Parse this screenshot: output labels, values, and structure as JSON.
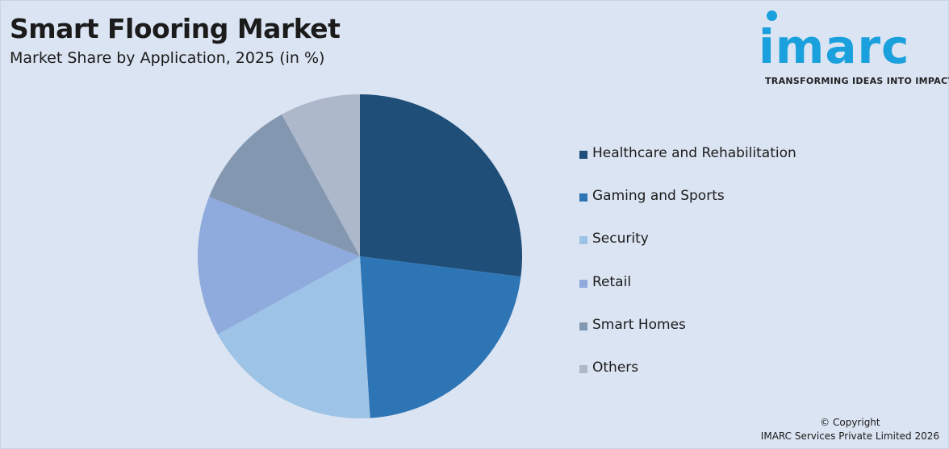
{
  "header": {
    "title": "Smart Flooring Market",
    "subtitle": "Market Share by Application, 2025 (in %)"
  },
  "logo": {
    "text": "imarc",
    "tagline": "TRANSFORMING IDEAS INTO IMPACT",
    "color": "#1aa0dc"
  },
  "chart_data": {
    "type": "pie",
    "title": "Smart Flooring Market",
    "subtitle": "Market Share by Application, 2025 (in %)",
    "legend_position": "right",
    "slices": [
      {
        "label": "Healthcare and Rehabilitation",
        "value": 27,
        "color": "#1f4e79"
      },
      {
        "label": "Gaming and Sports",
        "value": 22,
        "color": "#2e75b6"
      },
      {
        "label": "Security",
        "value": 18,
        "color": "#9dc3e6"
      },
      {
        "label": "Retail",
        "value": 14,
        "color": "#8faadc"
      },
      {
        "label": "Smart Homes",
        "value": 11,
        "color": "#8497b0"
      },
      {
        "label": "Others",
        "value": 8,
        "color": "#adb9ca"
      }
    ]
  },
  "footer": {
    "copyright_line1": "© Copyright",
    "copyright_line2": "IMARC Services Private Limited 2026"
  }
}
